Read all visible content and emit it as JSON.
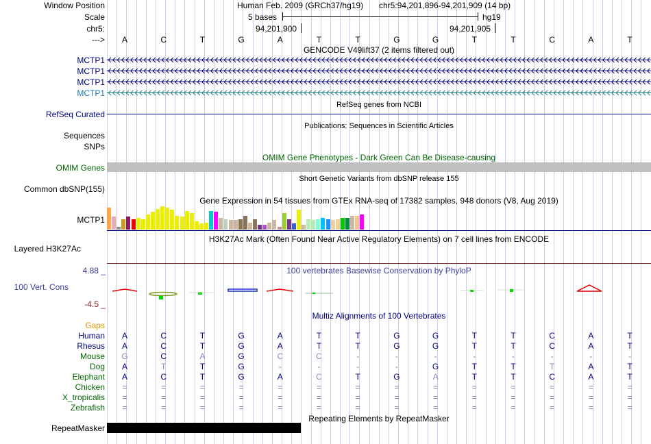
{
  "labels": {
    "window_position": "Window Position",
    "scale": "Scale",
    "chr": "chr5:",
    "arrow": "--->",
    "mctp1_1": "MCTP1",
    "mctp1_2": "MCTP1",
    "mctp1_3": "MCTP1",
    "mctp1_4": "MCTP1",
    "refseq": "RefSeq Curated",
    "sequences": "Sequences",
    "snps": "SNPs",
    "omim": "OMIM Genes",
    "common_dbsnp": "Common dbSNP(155)",
    "gtex": "MCTP1",
    "h3k27ac": "Layered H3K27Ac",
    "phylop_max": "4.88 _",
    "phylop": "100 Vert. Cons",
    "phylop_min": "-4.5 _",
    "gaps": "Gaps",
    "species": [
      "Human",
      "Rhesus",
      "Mouse",
      "Dog",
      "Elephant",
      "Chicken",
      "X_tropicalis",
      "Zebrafish"
    ],
    "repeatmasker": "RepeatMasker"
  },
  "header": {
    "assembly": "Human Feb. 2009 (GRCh37/hg19)",
    "position": "chr5:94,201,896-94,201,909 (14 bp)",
    "scale_text": "5 bases",
    "scale_db": "hg19",
    "coord1": "94,201,900",
    "coord2": "94,201,905"
  },
  "track_titles": {
    "gencode": "GENCODE V49lift37 (2 items filtered out)",
    "refseq": "RefSeq genes from NCBI",
    "publications": "Publications: Sequences in Scientific Articles",
    "omim": "OMIM Gene Phenotypes - Dark Green Can Be Disease-causing",
    "dbsnp": "Short Genetic Variants from dbSNP release 155",
    "gtex": "Gene Expression in 54 tissues from GTEx RNA-seq of 17382 samples, 948 donors (V8, Aug 2019)",
    "h3k27ac": "H3K27Ac Mark (Often Found Near Active Regulatory Elements) on 7 cell lines from ENCODE",
    "phylop": "100 vertebrates Basewise Conservation by PhyloP",
    "multiz": "Multiz Alignments of 100 Vertebrates",
    "repeatmasker": "Repeating Elements by RepeatMasker"
  },
  "bases": [
    "A",
    "C",
    "T",
    "G",
    "A",
    "T",
    "T",
    "G",
    "G",
    "T",
    "T",
    "C",
    "A",
    "T"
  ],
  "alignments": {
    "Human": [
      "A",
      "C",
      "T",
      "G",
      "A",
      "T",
      "T",
      "G",
      "G",
      "T",
      "T",
      "C",
      "A",
      "T"
    ],
    "Rhesus": [
      "A",
      "C",
      "T",
      "G",
      "A",
      "T",
      "T",
      "G",
      "G",
      "T",
      "T",
      "C",
      "A",
      "T"
    ],
    "Mouse": [
      "G",
      "C",
      "A",
      "G",
      "C",
      "C",
      "-",
      "-",
      "-",
      "-",
      "-",
      "-",
      "-",
      "-"
    ],
    "Dog": [
      "A",
      "T",
      "T",
      "G",
      "-",
      "-",
      "-",
      "-",
      "G",
      "T",
      "T",
      "T",
      "A",
      "T"
    ],
    "Elephant": [
      "A",
      "C",
      "T",
      "G",
      "A",
      "C",
      "T",
      "G",
      "A",
      "T",
      "T",
      "C",
      "A",
      "T"
    ],
    "Chicken": [
      "=",
      "=",
      "=",
      "=",
      "=",
      "=",
      "=",
      "=",
      "=",
      "=",
      "=",
      "=",
      "=",
      "="
    ],
    "X_tropicalis": [
      "=",
      "=",
      "=",
      "=",
      "=",
      "=",
      "=",
      "=",
      "=",
      "=",
      "=",
      "=",
      "=",
      "="
    ],
    "Zebrafish": [
      "=",
      "=",
      "=",
      "=",
      "=",
      "=",
      "=",
      "=",
      "=",
      "=",
      "=",
      "=",
      "=",
      "="
    ]
  },
  "mismatch": {
    "Mouse": [
      true,
      false,
      true,
      false,
      true,
      true,
      false,
      false,
      false,
      false,
      false,
      false,
      false,
      false
    ],
    "Dog": [
      false,
      true,
      false,
      false,
      false,
      false,
      false,
      false,
      false,
      false,
      false,
      true,
      false,
      false
    ],
    "Elephant": [
      false,
      false,
      false,
      false,
      false,
      true,
      false,
      false,
      true,
      false,
      false,
      false,
      false,
      false
    ]
  },
  "colors": {
    "label_blue": "#000080",
    "teal": "#1f77b4",
    "omim_green": "#006400",
    "gaps_orange": "#e69500",
    "phylop_title": "#4040a0",
    "phylop_min": "#8b1a1a",
    "phylop_lbl": "#3a3a9a",
    "species_green": "#006400",
    "mismatch": "#8888b8",
    "gray_bar": "#c0c0c0"
  },
  "gtex_bars": [
    {
      "v": 0.95,
      "c": "#FFA54F"
    },
    {
      "v": 0.55,
      "c": "#EEA9B8"
    },
    {
      "v": 0.12,
      "c": "#8B8B8B"
    },
    {
      "v": 0.45,
      "c": "#CD9B1D"
    },
    {
      "v": 0.55,
      "c": "#8B1C62"
    },
    {
      "v": 0.45,
      "c": "#EE0000"
    },
    {
      "v": 0.5,
      "c": "#EEEE00"
    },
    {
      "v": 0.45,
      "c": "#EEEE00"
    },
    {
      "v": 0.65,
      "c": "#EEEE00"
    },
    {
      "v": 0.75,
      "c": "#EEEE00"
    },
    {
      "v": 0.88,
      "c": "#EEEE00"
    },
    {
      "v": 1.0,
      "c": "#EEEE00"
    },
    {
      "v": 0.95,
      "c": "#EEEE00"
    },
    {
      "v": 0.85,
      "c": "#EEEE00"
    },
    {
      "v": 0.6,
      "c": "#EEEE00"
    },
    {
      "v": 0.55,
      "c": "#EEEE00"
    },
    {
      "v": 0.8,
      "c": "#EEEE00"
    },
    {
      "v": 0.7,
      "c": "#EEEE00"
    },
    {
      "v": 0.35,
      "c": "#EEEE00"
    },
    {
      "v": 0.25,
      "c": "#EEEE00"
    },
    {
      "v": 0.3,
      "c": "#EEEE00"
    },
    {
      "v": 0.8,
      "c": "#00CDCD"
    },
    {
      "v": 0.75,
      "c": "#FF00FF"
    },
    {
      "v": 0.5,
      "c": "#CDB79E"
    },
    {
      "v": 0.45,
      "c": "#C1CDC1"
    },
    {
      "v": 0.42,
      "c": "#CDB79E"
    },
    {
      "v": 0.42,
      "c": "#CDB79E"
    },
    {
      "v": 0.45,
      "c": "#8B7355"
    },
    {
      "v": 0.6,
      "c": "#8B7355"
    },
    {
      "v": 0.3,
      "c": "#CDB79E"
    },
    {
      "v": 0.45,
      "c": "#8B7355"
    },
    {
      "v": 0.2,
      "c": "#7A378B"
    },
    {
      "v": 0.22,
      "c": "#B452CD"
    },
    {
      "v": 0.3,
      "c": "#CDB79E"
    },
    {
      "v": 0.4,
      "c": "#CDB79E"
    },
    {
      "v": 0.12,
      "c": "#CD8C95"
    },
    {
      "v": 0.7,
      "c": "#9ACD32"
    },
    {
      "v": 0.45,
      "c": "#7A378B"
    },
    {
      "v": 0.25,
      "c": "#3A5FCD"
    },
    {
      "v": 0.85,
      "c": "#EEEE00"
    },
    {
      "v": 0.2,
      "c": "#CDB79E"
    },
    {
      "v": 0.45,
      "c": "#B4EEB4"
    },
    {
      "v": 0.4,
      "c": "#B4EEB4"
    },
    {
      "v": 0.45,
      "c": "#7FFFD4"
    },
    {
      "v": 0.5,
      "c": "#00BFFF"
    },
    {
      "v": 0.45,
      "c": "#1E90FF"
    },
    {
      "v": 0.4,
      "c": "#EECFA1"
    },
    {
      "v": 0.45,
      "c": "#EECFA1"
    },
    {
      "v": 0.5,
      "c": "#00CD00"
    },
    {
      "v": 0.5,
      "c": "#008B45"
    },
    {
      "v": 0.6,
      "c": "#CDB79E"
    },
    {
      "v": 0.6,
      "c": "#EEC591"
    },
    {
      "v": 0.65,
      "c": "#FF00FF"
    },
    {
      "v": 0.0,
      "c": "#ffffff"
    }
  ]
}
